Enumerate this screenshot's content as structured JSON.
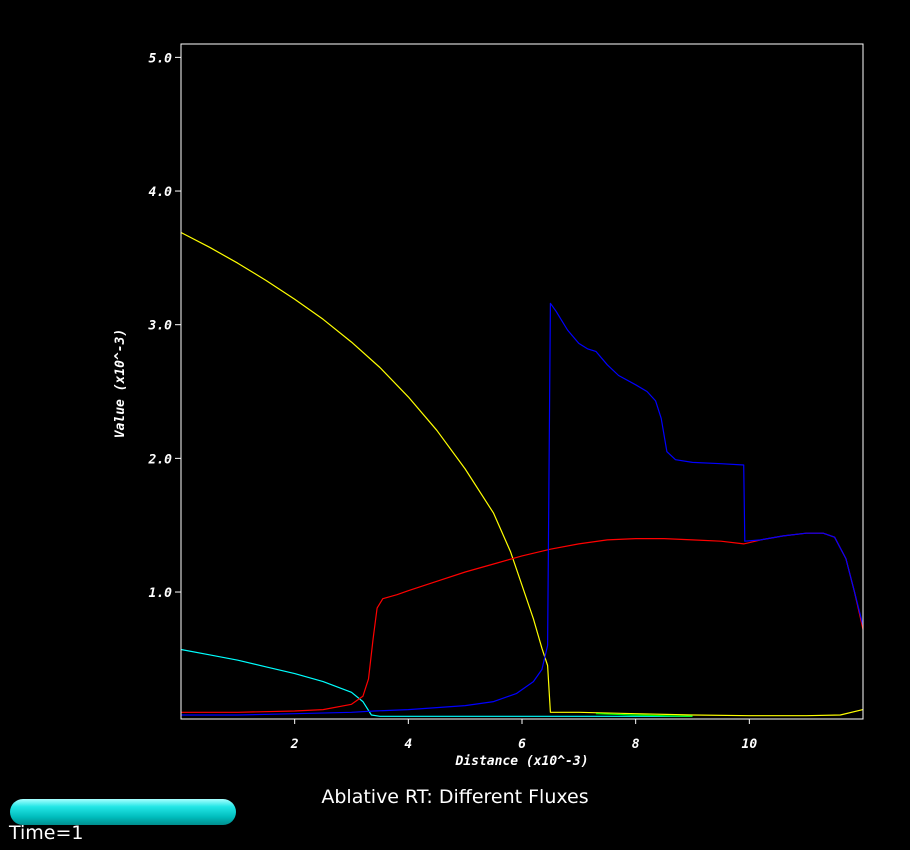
{
  "caption": "Ablative RT: Different Fluxes",
  "time_label": "Time=1",
  "chart_data": {
    "type": "line",
    "xlabel": "Distance (x10^-3)",
    "ylabel": "Value (x10^-3)",
    "xlim": [
      0,
      12.0
    ],
    "ylim": [
      0.05,
      5.1
    ],
    "xticks": [
      2,
      4,
      6,
      8,
      10
    ],
    "xtick_labels": [
      "2",
      "4",
      "6",
      "8",
      "10"
    ],
    "yticks": [
      1.0,
      2.0,
      3.0,
      4.0,
      5.0
    ],
    "ytick_labels": [
      "1.0",
      "2.0",
      "3.0",
      "4.0",
      "5.0"
    ],
    "axis_color": "#ffffff",
    "background": "#000000",
    "series": [
      {
        "color": "#ffff00",
        "points": [
          [
            0,
            3.69
          ],
          [
            0.5,
            3.58
          ],
          [
            1.0,
            3.46
          ],
          [
            1.5,
            3.33
          ],
          [
            2.0,
            3.19
          ],
          [
            2.5,
            3.04
          ],
          [
            3.0,
            2.87
          ],
          [
            3.5,
            2.68
          ],
          [
            4.0,
            2.46
          ],
          [
            4.5,
            2.21
          ],
          [
            5.0,
            1.92
          ],
          [
            5.5,
            1.59
          ],
          [
            5.8,
            1.3
          ],
          [
            6.0,
            1.05
          ],
          [
            6.2,
            0.8
          ],
          [
            6.35,
            0.58
          ],
          [
            6.45,
            0.45
          ],
          [
            6.5,
            0.1
          ],
          [
            7.0,
            0.1
          ],
          [
            8.0,
            0.09
          ],
          [
            9.0,
            0.08
          ],
          [
            10.0,
            0.075
          ],
          [
            11.0,
            0.075
          ],
          [
            11.6,
            0.08
          ],
          [
            12.0,
            0.12
          ]
        ]
      },
      {
        "color": "#00ffff",
        "points": [
          [
            0,
            0.57
          ],
          [
            0.5,
            0.53
          ],
          [
            1.0,
            0.49
          ],
          [
            1.5,
            0.44
          ],
          [
            2.0,
            0.39
          ],
          [
            2.5,
            0.33
          ],
          [
            3.0,
            0.25
          ],
          [
            3.2,
            0.18
          ],
          [
            3.35,
            0.08
          ],
          [
            3.5,
            0.07
          ],
          [
            4.0,
            0.07
          ],
          [
            6.0,
            0.07
          ],
          [
            8.0,
            0.07
          ],
          [
            9.0,
            0.07
          ]
        ]
      },
      {
        "color": "#ff0000",
        "points": [
          [
            0,
            0.1
          ],
          [
            1.0,
            0.1
          ],
          [
            2.0,
            0.11
          ],
          [
            2.5,
            0.12
          ],
          [
            3.0,
            0.16
          ],
          [
            3.2,
            0.22
          ],
          [
            3.3,
            0.35
          ],
          [
            3.38,
            0.65
          ],
          [
            3.45,
            0.88
          ],
          [
            3.55,
            0.95
          ],
          [
            3.8,
            0.98
          ],
          [
            4.0,
            1.01
          ],
          [
            4.5,
            1.08
          ],
          [
            5.0,
            1.15
          ],
          [
            5.5,
            1.21
          ],
          [
            6.0,
            1.27
          ],
          [
            6.5,
            1.32
          ],
          [
            7.0,
            1.36
          ],
          [
            7.5,
            1.39
          ],
          [
            8.0,
            1.4
          ],
          [
            8.5,
            1.4
          ],
          [
            9.0,
            1.39
          ],
          [
            9.5,
            1.38
          ],
          [
            9.9,
            1.36
          ],
          [
            10.2,
            1.39
          ],
          [
            10.6,
            1.42
          ],
          [
            11.0,
            1.44
          ],
          [
            11.3,
            1.44
          ],
          [
            11.5,
            1.41
          ],
          [
            11.7,
            1.25
          ],
          [
            11.85,
            1.0
          ],
          [
            12.0,
            0.72
          ]
        ]
      },
      {
        "color": "#0000ff",
        "points": [
          [
            0,
            0.08
          ],
          [
            1.0,
            0.08
          ],
          [
            2.0,
            0.09
          ],
          [
            3.0,
            0.1
          ],
          [
            3.4,
            0.11
          ],
          [
            4.0,
            0.12
          ],
          [
            5.0,
            0.15
          ],
          [
            5.5,
            0.18
          ],
          [
            5.9,
            0.24
          ],
          [
            6.2,
            0.33
          ],
          [
            6.35,
            0.42
          ],
          [
            6.45,
            0.6
          ],
          [
            6.5,
            3.16
          ],
          [
            6.6,
            3.1
          ],
          [
            6.8,
            2.96
          ],
          [
            7.0,
            2.86
          ],
          [
            7.15,
            2.82
          ],
          [
            7.3,
            2.8
          ],
          [
            7.5,
            2.7
          ],
          [
            7.7,
            2.62
          ],
          [
            8.0,
            2.55
          ],
          [
            8.2,
            2.5
          ],
          [
            8.35,
            2.43
          ],
          [
            8.45,
            2.3
          ],
          [
            8.55,
            2.05
          ],
          [
            8.7,
            1.99
          ],
          [
            9.0,
            1.97
          ],
          [
            9.5,
            1.96
          ],
          [
            9.9,
            1.95
          ],
          [
            9.92,
            1.38
          ],
          [
            10.2,
            1.39
          ],
          [
            10.6,
            1.42
          ],
          [
            11.0,
            1.44
          ],
          [
            11.3,
            1.44
          ],
          [
            11.5,
            1.41
          ],
          [
            11.7,
            1.25
          ],
          [
            11.85,
            1.0
          ],
          [
            12.0,
            0.75
          ]
        ]
      },
      {
        "color": "#00ff00",
        "points": [
          [
            7.3,
            0.09
          ],
          [
            8.0,
            0.08
          ],
          [
            8.5,
            0.075
          ],
          [
            9.0,
            0.07
          ]
        ]
      }
    ]
  }
}
